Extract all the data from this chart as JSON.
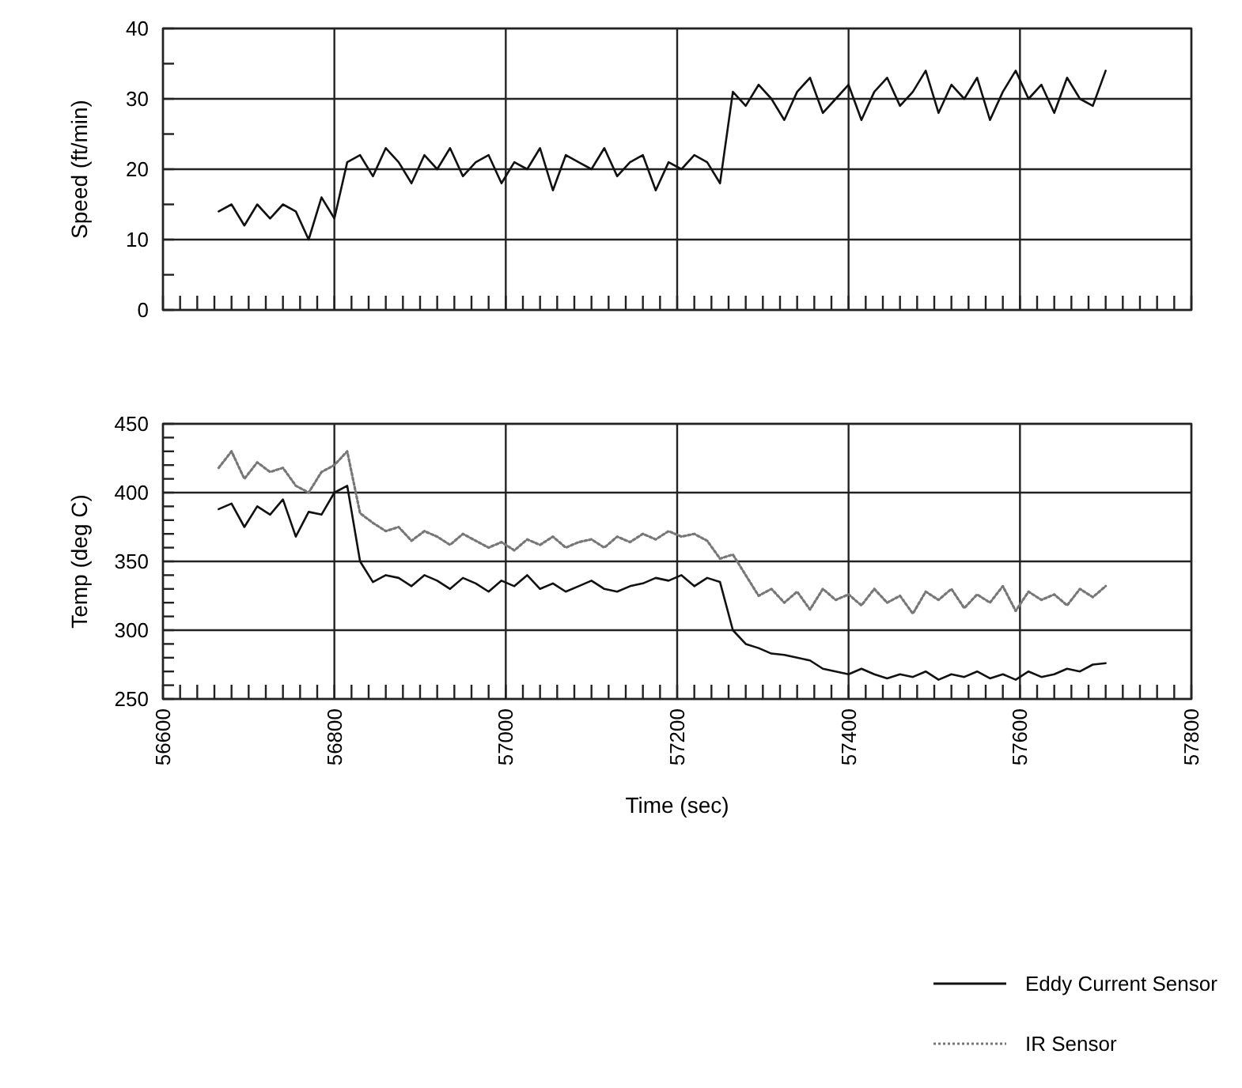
{
  "chart_data": [
    {
      "type": "line",
      "ylabel": "Speed (ft/min)",
      "xlim": [
        56600,
        57800
      ],
      "ylim": [
        0,
        40
      ],
      "tick_labels": "y",
      "grid": true,
      "yticks": [
        0,
        {
          "value": 5,
          "label": null
        },
        10,
        {
          "value": 15,
          "label": null
        },
        20,
        {
          "value": 25,
          "label": null
        },
        30,
        {
          "value": 35,
          "label": null
        },
        40
      ],
      "xticks": [
        56600,
        {
          "value": 56620,
          "label": null
        },
        {
          "value": 56640,
          "label": null
        },
        {
          "value": 56660,
          "label": null
        },
        {
          "value": 56680,
          "label": null
        },
        {
          "value": 56700,
          "label": null
        },
        {
          "value": 56720,
          "label": null
        },
        {
          "value": 56740,
          "label": null
        },
        {
          "value": 56760,
          "label": null
        },
        {
          "value": 56780,
          "label": null
        },
        56800,
        {
          "value": 56820,
          "label": null
        },
        {
          "value": 56840,
          "label": null
        },
        {
          "value": 56860,
          "label": null
        },
        {
          "value": 56880,
          "label": null
        },
        {
          "value": 56900,
          "label": null
        },
        {
          "value": 56920,
          "label": null
        },
        {
          "value": 56940,
          "label": null
        },
        {
          "value": 56960,
          "label": null
        },
        {
          "value": 56980,
          "label": null
        },
        57000,
        {
          "value": 57020,
          "label": null
        },
        {
          "value": 57040,
          "label": null
        },
        {
          "value": 57060,
          "label": null
        },
        {
          "value": 57080,
          "label": null
        },
        {
          "value": 57100,
          "label": null
        },
        {
          "value": 57120,
          "label": null
        },
        {
          "value": 57140,
          "label": null
        },
        {
          "value": 57160,
          "label": null
        },
        {
          "value": 57180,
          "label": null
        },
        57200,
        {
          "value": 57220,
          "label": null
        },
        {
          "value": 57240,
          "label": null
        },
        {
          "value": 57260,
          "label": null
        },
        {
          "value": 57280,
          "label": null
        },
        {
          "value": 57300,
          "label": null
        },
        {
          "value": 57320,
          "label": null
        },
        {
          "value": 57340,
          "label": null
        },
        {
          "value": 57360,
          "label": null
        },
        {
          "value": 57380,
          "label": null
        },
        57400,
        {
          "value": 57420,
          "label": null
        },
        {
          "value": 57440,
          "label": null
        },
        {
          "value": 57460,
          "label": null
        },
        {
          "value": 57480,
          "label": null
        },
        {
          "value": 57500,
          "label": null
        },
        {
          "value": 57520,
          "label": null
        },
        {
          "value": 57540,
          "label": null
        },
        {
          "value": 57560,
          "label": null
        },
        {
          "value": 57580,
          "label": null
        },
        57600,
        {
          "value": 57620,
          "label": null
        },
        {
          "value": 57640,
          "label": null
        },
        {
          "value": 57660,
          "label": null
        },
        {
          "value": 57680,
          "label": null
        },
        {
          "value": 57700,
          "label": null
        },
        {
          "value": 57720,
          "label": null
        },
        {
          "value": 57740,
          "label": null
        },
        {
          "value": 57760,
          "label": null
        },
        {
          "value": 57780,
          "label": null
        },
        57800
      ],
      "x": [
        56665,
        56680,
        56695,
        56710,
        56725,
        56740,
        56755,
        56770,
        56785,
        56800,
        56815,
        56830,
        56845,
        56860,
        56875,
        56890,
        56905,
        56920,
        56935,
        56950,
        56965,
        56980,
        56995,
        57010,
        57025,
        57040,
        57055,
        57070,
        57085,
        57100,
        57115,
        57130,
        57145,
        57160,
        57175,
        57190,
        57205,
        57220,
        57235,
        57250,
        57265,
        57280,
        57295,
        57310,
        57325,
        57340,
        57355,
        57370,
        57385,
        57400,
        57415,
        57430,
        57445,
        57460,
        57475,
        57490,
        57505,
        57520,
        57535,
        57550,
        57565,
        57580,
        57595,
        57610,
        57625,
        57640,
        57655,
        57670,
        57685,
        57700
      ],
      "series": [
        {
          "color": "#111111",
          "line_style": "solid",
          "values": [
            14,
            15,
            12,
            15,
            13,
            15,
            14,
            10,
            16,
            13,
            21,
            22,
            19,
            23,
            21,
            18,
            22,
            20,
            23,
            19,
            21,
            22,
            18,
            21,
            20,
            23,
            17,
            22,
            21,
            20,
            23,
            19,
            21,
            22,
            17,
            21,
            20,
            22,
            21,
            18,
            31,
            29,
            32,
            30,
            27,
            31,
            33,
            28,
            30,
            32,
            27,
            31,
            33,
            29,
            31,
            34,
            28,
            32,
            30,
            33,
            27,
            31,
            34,
            30,
            32,
            28,
            33,
            30,
            29,
            34
          ]
        }
      ]
    },
    {
      "type": "line",
      "ylabel": "Temp (deg C)",
      "xlabel": "Time (sec)",
      "xlim": [
        56600,
        57800
      ],
      "ylim": [
        250,
        450
      ],
      "grid": true,
      "legend": "bottom right",
      "yticks": [
        250,
        {
          "value": 260,
          "label": null
        },
        {
          "value": 270,
          "label": null
        },
        {
          "value": 280,
          "label": null
        },
        {
          "value": 290,
          "label": null
        },
        300,
        {
          "value": 310,
          "label": null
        },
        {
          "value": 320,
          "label": null
        },
        {
          "value": 330,
          "label": null
        },
        {
          "value": 340,
          "label": null
        },
        350,
        {
          "value": 360,
          "label": null
        },
        {
          "value": 370,
          "label": null
        },
        {
          "value": 380,
          "label": null
        },
        {
          "value": 390,
          "label": null
        },
        400,
        {
          "value": 410,
          "label": null
        },
        {
          "value": 420,
          "label": null
        },
        {
          "value": 430,
          "label": null
        },
        {
          "value": 440,
          "label": null
        },
        450
      ],
      "xticks": [
        56600,
        {
          "value": 56620,
          "label": null
        },
        {
          "value": 56640,
          "label": null
        },
        {
          "value": 56660,
          "label": null
        },
        {
          "value": 56680,
          "label": null
        },
        {
          "value": 56700,
          "label": null
        },
        {
          "value": 56720,
          "label": null
        },
        {
          "value": 56740,
          "label": null
        },
        {
          "value": 56760,
          "label": null
        },
        {
          "value": 56780,
          "label": null
        },
        56800,
        {
          "value": 56820,
          "label": null
        },
        {
          "value": 56840,
          "label": null
        },
        {
          "value": 56860,
          "label": null
        },
        {
          "value": 56880,
          "label": null
        },
        {
          "value": 56900,
          "label": null
        },
        {
          "value": 56920,
          "label": null
        },
        {
          "value": 56940,
          "label": null
        },
        {
          "value": 56960,
          "label": null
        },
        {
          "value": 56980,
          "label": null
        },
        57000,
        {
          "value": 57020,
          "label": null
        },
        {
          "value": 57040,
          "label": null
        },
        {
          "value": 57060,
          "label": null
        },
        {
          "value": 57080,
          "label": null
        },
        {
          "value": 57100,
          "label": null
        },
        {
          "value": 57120,
          "label": null
        },
        {
          "value": 57140,
          "label": null
        },
        {
          "value": 57160,
          "label": null
        },
        {
          "value": 57180,
          "label": null
        },
        57200,
        {
          "value": 57220,
          "label": null
        },
        {
          "value": 57240,
          "label": null
        },
        {
          "value": 57260,
          "label": null
        },
        {
          "value": 57280,
          "label": null
        },
        {
          "value": 57300,
          "label": null
        },
        {
          "value": 57320,
          "label": null
        },
        {
          "value": 57340,
          "label": null
        },
        {
          "value": 57360,
          "label": null
        },
        {
          "value": 57380,
          "label": null
        },
        57400,
        {
          "value": 57420,
          "label": null
        },
        {
          "value": 57440,
          "label": null
        },
        {
          "value": 57460,
          "label": null
        },
        {
          "value": 57480,
          "label": null
        },
        {
          "value": 57500,
          "label": null
        },
        {
          "value": 57520,
          "label": null
        },
        {
          "value": 57540,
          "label": null
        },
        {
          "value": 57560,
          "label": null
        },
        {
          "value": 57580,
          "label": null
        },
        57600,
        {
          "value": 57620,
          "label": null
        },
        {
          "value": 57640,
          "label": null
        },
        {
          "value": 57660,
          "label": null
        },
        {
          "value": 57680,
          "label": null
        },
        {
          "value": 57700,
          "label": null
        },
        {
          "value": 57720,
          "label": null
        },
        {
          "value": 57740,
          "label": null
        },
        {
          "value": 57760,
          "label": null
        },
        {
          "value": 57780,
          "label": null
        },
        57800
      ],
      "x": [
        56665,
        56680,
        56695,
        56710,
        56725,
        56740,
        56755,
        56770,
        56785,
        56800,
        56815,
        56830,
        56845,
        56860,
        56875,
        56890,
        56905,
        56920,
        56935,
        56950,
        56965,
        56980,
        56995,
        57010,
        57025,
        57040,
        57055,
        57070,
        57085,
        57100,
        57115,
        57130,
        57145,
        57160,
        57175,
        57190,
        57205,
        57220,
        57235,
        57250,
        57265,
        57280,
        57295,
        57310,
        57325,
        57340,
        57355,
        57370,
        57385,
        57400,
        57415,
        57430,
        57445,
        57460,
        57475,
        57490,
        57505,
        57520,
        57535,
        57550,
        57565,
        57580,
        57595,
        57610,
        57625,
        57640,
        57655,
        57670,
        57685,
        57700
      ],
      "series": [
        {
          "name": "IR Sensor",
          "color": "#777777",
          "line_style": "dotted",
          "values": [
            418,
            430,
            410,
            422,
            415,
            418,
            405,
            400,
            415,
            420,
            430,
            385,
            378,
            372,
            375,
            365,
            372,
            368,
            362,
            370,
            365,
            360,
            364,
            358,
            366,
            362,
            368,
            360,
            364,
            366,
            360,
            368,
            364,
            370,
            366,
            372,
            368,
            370,
            365,
            352,
            355,
            340,
            325,
            330,
            320,
            328,
            315,
            330,
            322,
            326,
            318,
            330,
            320,
            325,
            312,
            328,
            322,
            330,
            316,
            326,
            320,
            332,
            314,
            328,
            322,
            326,
            318,
            330,
            324,
            332
          ]
        },
        {
          "name": "Eddy Current Sensor",
          "color": "#111111",
          "line_style": "solid",
          "values": [
            388,
            392,
            375,
            390,
            384,
            395,
            368,
            386,
            384,
            400,
            405,
            350,
            335,
            340,
            338,
            332,
            340,
            336,
            330,
            338,
            334,
            328,
            336,
            332,
            340,
            330,
            334,
            328,
            332,
            336,
            330,
            328,
            332,
            334,
            338,
            336,
            340,
            332,
            338,
            335,
            300,
            290,
            287,
            283,
            282,
            280,
            278,
            272,
            270,
            268,
            272,
            268,
            265,
            268,
            266,
            270,
            264,
            268,
            266,
            270,
            265,
            268,
            264,
            270,
            266,
            268,
            272,
            270,
            275,
            276
          ]
        }
      ]
    }
  ]
}
